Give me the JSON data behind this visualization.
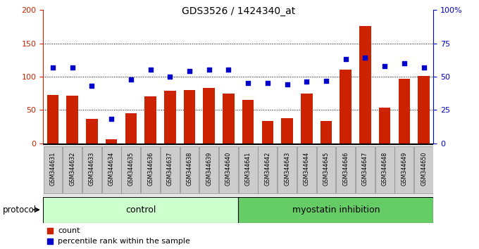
{
  "title": "GDS3526 / 1424340_at",
  "samples": [
    "GSM344631",
    "GSM344632",
    "GSM344633",
    "GSM344634",
    "GSM344635",
    "GSM344636",
    "GSM344637",
    "GSM344638",
    "GSM344639",
    "GSM344640",
    "GSM344641",
    "GSM344642",
    "GSM344643",
    "GSM344644",
    "GSM344645",
    "GSM344646",
    "GSM344647",
    "GSM344648",
    "GSM344649",
    "GSM344650"
  ],
  "counts": [
    72,
    71,
    36,
    6,
    45,
    70,
    79,
    80,
    83,
    75,
    65,
    33,
    38,
    74,
    33,
    110,
    176,
    53,
    97,
    101
  ],
  "percentiles": [
    57,
    57,
    43,
    18,
    48,
    55,
    50,
    54,
    55,
    55,
    45,
    45,
    44,
    46,
    47,
    63,
    64,
    58,
    60,
    57
  ],
  "bar_color": "#cc2200",
  "dot_color": "#0000cc",
  "left_yticks": [
    0,
    50,
    100,
    150,
    200
  ],
  "right_yticks": [
    0,
    25,
    50,
    75,
    100
  ],
  "grid_values": [
    50,
    100,
    150
  ],
  "control_count": 10,
  "control_bg": "#ccffcc",
  "myostatin_bg": "#66cc66",
  "control_label": "control",
  "myostatin_label": "myostatin inhibition",
  "protocol_label": "protocol",
  "legend_count_label": "count",
  "legend_pct_label": "percentile rank within the sample",
  "sample_bg": "#cccccc"
}
